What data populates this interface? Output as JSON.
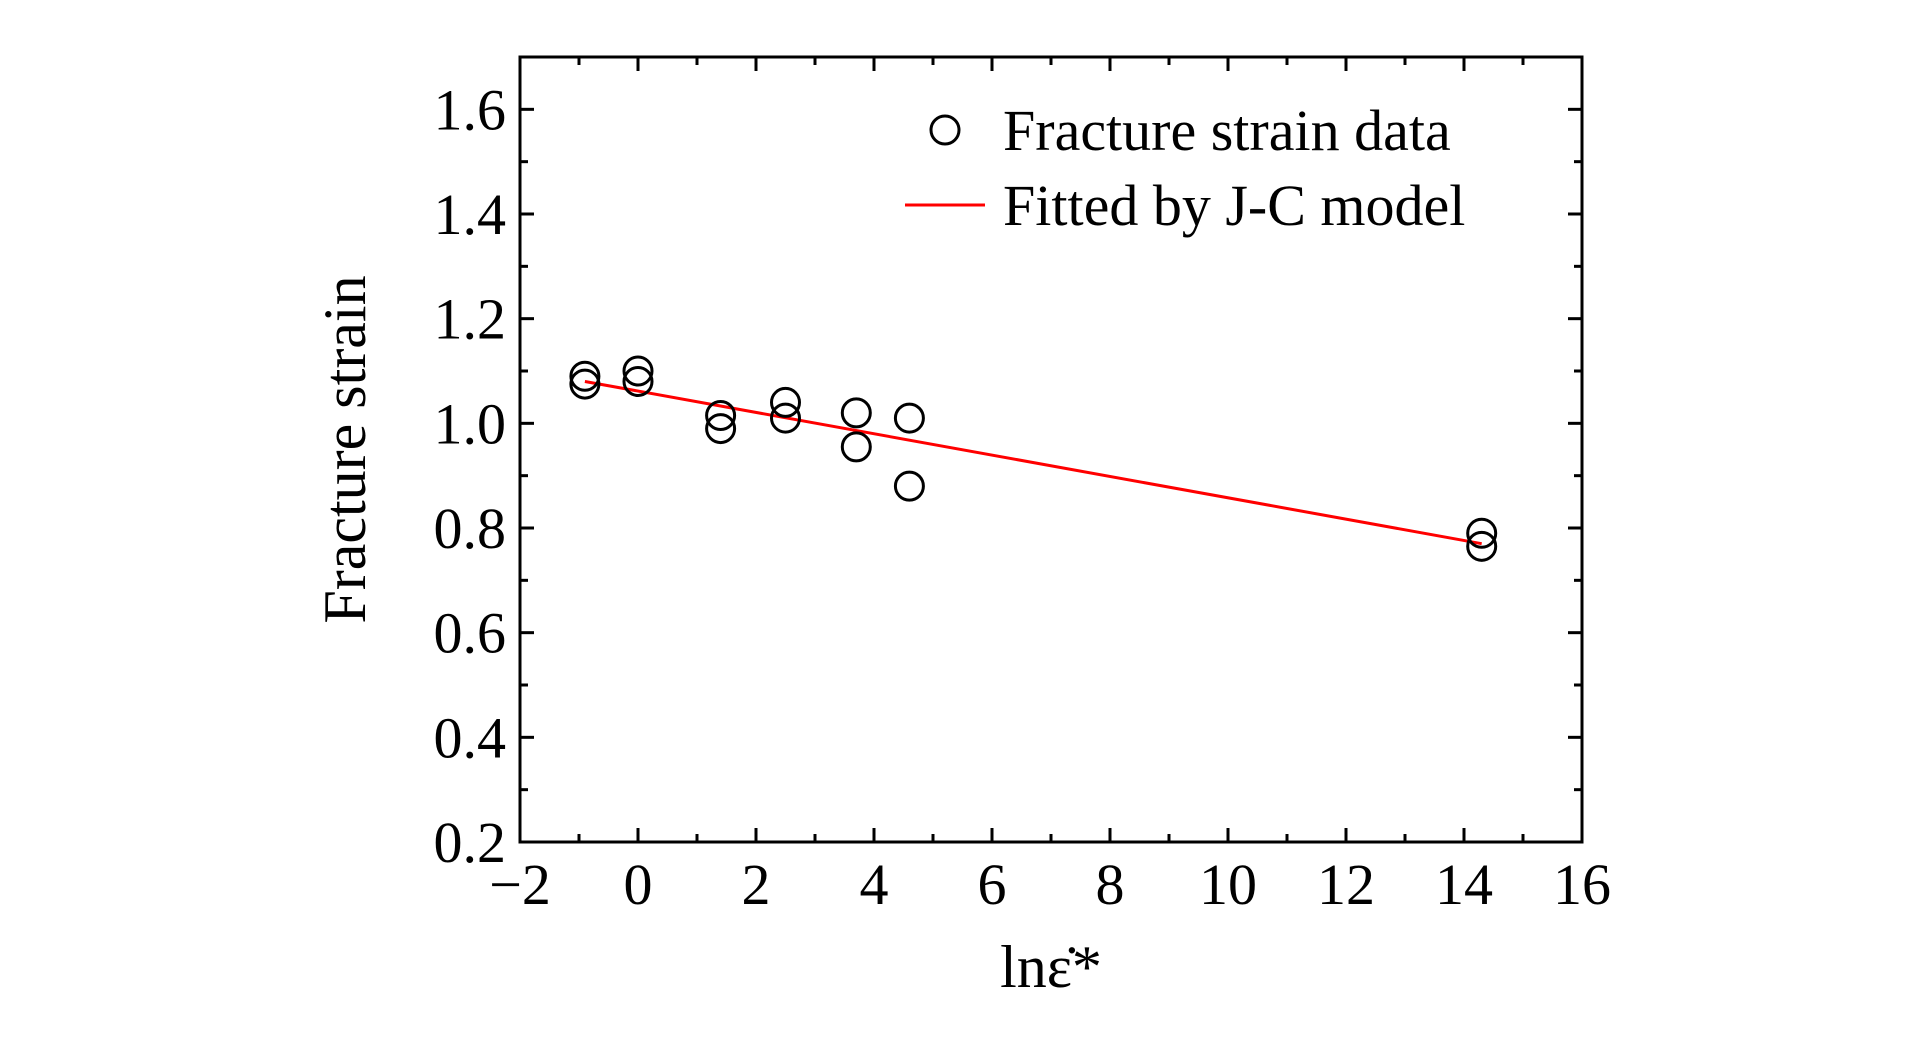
{
  "chart_data": {
    "type": "scatter",
    "xlabel": "lnε̇*",
    "ylabel": "Fracture strain",
    "xlim": [
      -2,
      16
    ],
    "ylim": [
      0.2,
      1.7
    ],
    "x_ticks": [
      -2,
      0,
      2,
      4,
      6,
      8,
      10,
      12,
      14,
      16
    ],
    "x_tick_labels": [
      "−2",
      "0",
      "2",
      "4",
      "6",
      "8",
      "10",
      "12",
      "14",
      "16"
    ],
    "y_ticks": [
      0.2,
      0.4,
      0.6,
      0.8,
      1.0,
      1.2,
      1.4,
      1.6
    ],
    "y_tick_labels": [
      "0.2",
      "0.4",
      "0.6",
      "0.8",
      "1.0",
      "1.2",
      "1.4",
      "1.6"
    ],
    "grid": false,
    "legend_position": "top-right",
    "series": [
      {
        "name": "Fracture strain data",
        "kind": "scatter",
        "marker": "open-circle",
        "color": "#000000",
        "points": [
          {
            "x": -0.9,
            "y": 1.09
          },
          {
            "x": -0.9,
            "y": 1.075
          },
          {
            "x": 0.0,
            "y": 1.08
          },
          {
            "x": 0.0,
            "y": 1.1
          },
          {
            "x": 1.4,
            "y": 1.015
          },
          {
            "x": 1.4,
            "y": 0.99
          },
          {
            "x": 2.5,
            "y": 1.04
          },
          {
            "x": 2.5,
            "y": 1.01
          },
          {
            "x": 3.7,
            "y": 1.02
          },
          {
            "x": 3.7,
            "y": 0.955
          },
          {
            "x": 4.6,
            "y": 1.01
          },
          {
            "x": 4.6,
            "y": 0.88
          },
          {
            "x": 14.3,
            "y": 0.79
          },
          {
            "x": 14.3,
            "y": 0.765
          }
        ]
      },
      {
        "name": "Fitted by J-C model",
        "kind": "line",
        "color": "#ff0000",
        "points": [
          {
            "x": -0.9,
            "y": 1.08
          },
          {
            "x": 14.3,
            "y": 0.77
          }
        ]
      }
    ]
  }
}
